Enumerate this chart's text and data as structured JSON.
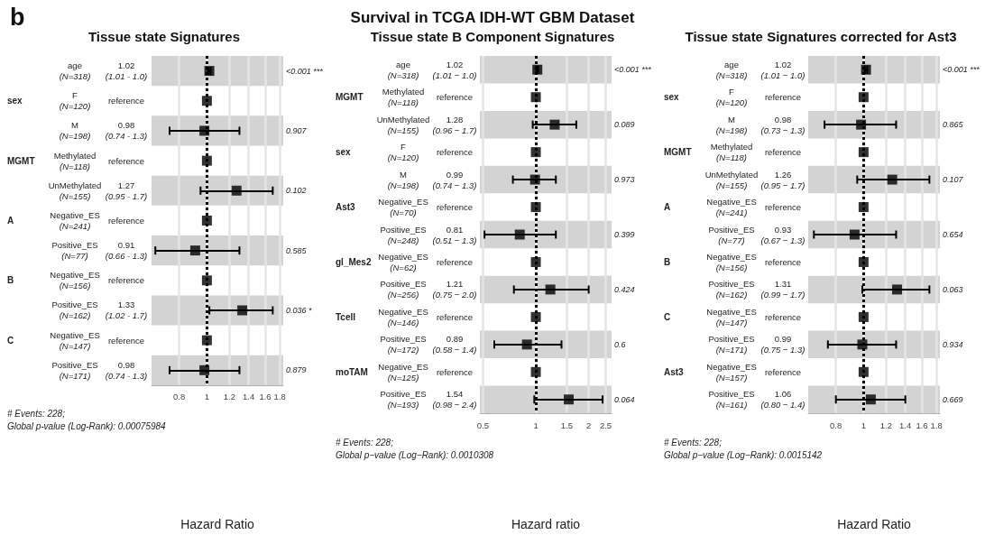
{
  "chart_data": [
    {
      "type": "scatter",
      "orientation": "horizontal",
      "title": "b",
      "subtitle": "Tissue state Signatures",
      "xlabel": "Hazard Ratio",
      "color": "#000000",
      "marker": "square",
      "log": "x",
      "grid": "x",
      "xlim": [
        0.64,
        1.85
      ],
      "xticks": [
        0.8,
        1,
        1.2,
        1.4,
        1.6,
        1.8
      ],
      "categories": [
        "age (N=318) 1.02 (1.01 - 1.0)",
        "sex F (N=120) reference",
        "M (N=198) 0.98 (0.74 - 1.3)",
        "MGMT Methylated (N=118) reference",
        "UnMethylated (N=155) 1.27 (0.95 - 1.7)",
        "A Negative_ES (N=241) reference",
        "Positive_ES (N=77) 0.91 (0.66 - 1.3)",
        "B Negative_ES (N=156) reference",
        "Positive_ES (N=162) 1.33 (1.02 - 1.7)",
        "C Negative_ES (N=147) reference",
        "Positive_ES (N=171) 0.98 (0.74 - 1.3)"
      ],
      "y2_categories": [
        "<0.001 ***",
        null,
        "0.907",
        null,
        "0.102",
        null,
        "0.585",
        null,
        "0.036 *",
        null,
        "0.879"
      ],
      "values": [
        1.02,
        1,
        0.98,
        1,
        1.27,
        1,
        0.91,
        1,
        1.33,
        1,
        0.98
      ],
      "errors": [
        [
          1.01,
          1.03
        ],
        null,
        [
          0.74,
          1.3
        ],
        null,
        [
          0.95,
          1.7
        ],
        null,
        [
          0.66,
          1.3
        ],
        null,
        [
          1.02,
          1.7
        ],
        null,
        [
          0.74,
          1.3
        ]
      ],
      "ref_lines": [
        {
          "axis": "x",
          "value": 1,
          "line_style": "dotted",
          "color": "#000000"
        }
      ],
      "annotations": [
        "# Events: 228;",
        "Global p-value (Log-Rank): 0.00075984"
      ]
    },
    {
      "type": "scatter",
      "orientation": "horizontal",
      "title": "Survival in TCGA IDH-WT GBM Dataset",
      "subtitle": "Tissue state B Component Signatures",
      "xlabel": "Hazard ratio",
      "color": "#000000",
      "marker": "square",
      "log": "x",
      "grid": "x",
      "xlim": [
        0.48,
        2.7
      ],
      "xticks": [
        0.5,
        1,
        1.5,
        2,
        2.5
      ],
      "categories": [
        "age (N=318) 1.02 (1.01 − 1.0)",
        "MGMT Methylated (N=118) reference",
        "UnMethylated (N=155) 1.28 (0.96 − 1.7)",
        "sex F (N=120) reference",
        "M (N=198) 0.99 (0.74 − 1.3)",
        "Ast3 Negative_ES (N=70) reference",
        "Positive_ES (N=248) 0.81 (0.51 − 1.3)",
        "gl_Mes2 Negative_ES (N=62) reference",
        "Positive_ES (N=256) 1.21 (0.75 − 2.0)",
        "Tcell Negative_ES (N=146) reference",
        "Positive_ES (N=172) 0.89 (0.58 − 1.4)",
        "moTAM Negative_ES (N=125) reference",
        "Positive_ES (N=193) 1.54 (0.98 − 2.4)"
      ],
      "y2_categories": [
        "<0.001 ***",
        null,
        "0.089",
        null,
        "0.973",
        null,
        "0.399",
        null,
        "0.424",
        null,
        "0.6",
        null,
        "0.064"
      ],
      "values": [
        1.02,
        1,
        1.28,
        1,
        0.99,
        1,
        0.81,
        1,
        1.21,
        1,
        0.89,
        1,
        1.54
      ],
      "errors": [
        [
          1.01,
          1.03
        ],
        null,
        [
          0.96,
          1.7
        ],
        null,
        [
          0.74,
          1.3
        ],
        null,
        [
          0.51,
          1.3
        ],
        null,
        [
          0.75,
          2.0
        ],
        null,
        [
          0.58,
          1.4
        ],
        null,
        [
          0.98,
          2.4
        ]
      ],
      "ref_lines": [
        {
          "axis": "x",
          "value": 1,
          "line_style": "dotted",
          "color": "#000000"
        }
      ],
      "annotations": [
        "# Events: 228;",
        "Global p−value (Log−Rank): 0.0010308"
      ]
    },
    {
      "type": "scatter",
      "orientation": "horizontal",
      "title": "Tissue state Signatures corrected for Ast3",
      "xlabel": "Hazard Ratio",
      "color": "#000000",
      "marker": "square",
      "log": "x",
      "grid": "x",
      "xlim": [
        0.64,
        1.85
      ],
      "xticks": [
        0.8,
        1,
        1.2,
        1.4,
        1.6,
        1.8
      ],
      "categories": [
        "age (N=318) 1.02 (1.01 − 1.0)",
        "sex F (N=120) reference",
        "M (N=198) 0.98 (0.73 − 1.3)",
        "MGMT Methylated (N=118) reference",
        "UnMethylated (N=155) 1.26 (0.95 − 1.7)",
        "A Negative_ES (N=241) reference",
        "Positive_ES (N=77) 0.93 (0.67 − 1.3)",
        "B Negative_ES (N=156) reference",
        "Positive_ES (N=162) 1.31 (0.99 − 1.7)",
        "C Negative_ES (N=147) reference",
        "Positive_ES (N=171) 0.99 (0.75 − 1.3)",
        "Ast3 Negative_ES (N=157) reference",
        "Positive_ES (N=161) 1.06 (0.80 − 1.4)"
      ],
      "y2_categories": [
        "<0.001 ***",
        null,
        "0.865",
        null,
        "0.107",
        null,
        "0.654",
        null,
        "0.063",
        null,
        "0.934",
        null,
        "0.669"
      ],
      "values": [
        1.02,
        1,
        0.98,
        1,
        1.26,
        1,
        0.93,
        1,
        1.31,
        1,
        0.99,
        1,
        1.06
      ],
      "errors": [
        [
          1.01,
          1.03
        ],
        null,
        [
          0.73,
          1.3
        ],
        null,
        [
          0.95,
          1.7
        ],
        null,
        [
          0.67,
          1.3
        ],
        null,
        [
          0.99,
          1.7
        ],
        null,
        [
          0.75,
          1.3
        ],
        null,
        [
          0.8,
          1.4
        ]
      ],
      "ref_lines": [
        {
          "axis": "x",
          "value": 1,
          "line_style": "dotted",
          "color": "#000000"
        }
      ],
      "annotations": [
        "# Events: 228;",
        "Global p−value (Log−Rank): 0.0015142"
      ]
    }
  ]
}
